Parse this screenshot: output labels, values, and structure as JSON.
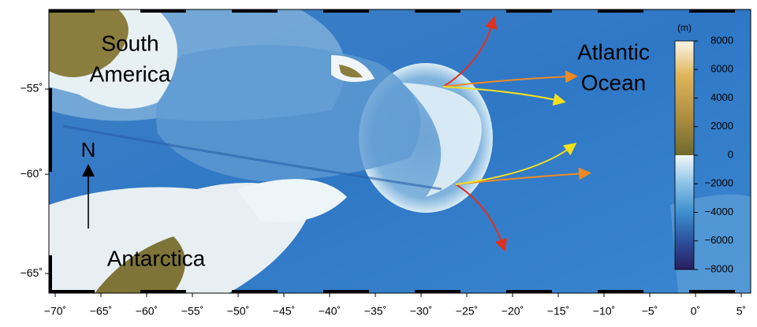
{
  "map": {
    "labels": [
      {
        "lines": [
          "South",
          "America"
        ]
      },
      {
        "lines": [
          "Atlantic",
          "Ocean"
        ]
      },
      {
        "lines": [
          "Antarctica"
        ]
      }
    ],
    "north_label": "N",
    "xticks": [
      {
        "value": -70,
        "label": "−70˚"
      },
      {
        "value": -65,
        "label": "−65˚"
      },
      {
        "value": -60,
        "label": "−60˚"
      },
      {
        "value": -55,
        "label": "−55˚"
      },
      {
        "value": -50,
        "label": "−50˚"
      },
      {
        "value": -45,
        "label": "−45˚"
      },
      {
        "value": -40,
        "label": "−40˚"
      },
      {
        "value": -35,
        "label": "−35˚"
      },
      {
        "value": -30,
        "label": "−30˚"
      },
      {
        "value": -25,
        "label": "−25˚"
      },
      {
        "value": -20,
        "label": "−20˚"
      },
      {
        "value": -15,
        "label": "−15˚"
      },
      {
        "value": -10,
        "label": "−10˚"
      },
      {
        "value": -5,
        "label": "−5˚"
      },
      {
        "value": 0,
        "label": "0˚"
      },
      {
        "value": 5,
        "label": "5˚"
      }
    ],
    "yticks": [
      {
        "value": -55,
        "label": "−55˚"
      },
      {
        "value": -60,
        "label": "−60˚"
      },
      {
        "value": -65,
        "label": "−65˚"
      }
    ],
    "colorbar": {
      "unit": "(m)",
      "ticks": [
        8000,
        6000,
        4000,
        2000,
        0,
        {
          "value": -2000,
          "label": "−2000"
        },
        {
          "value": -4000,
          "label": "−4000"
        },
        {
          "value": -6000,
          "label": "−6000"
        },
        {
          "value": -8000,
          "label": "−8000"
        }
      ]
    }
  }
}
